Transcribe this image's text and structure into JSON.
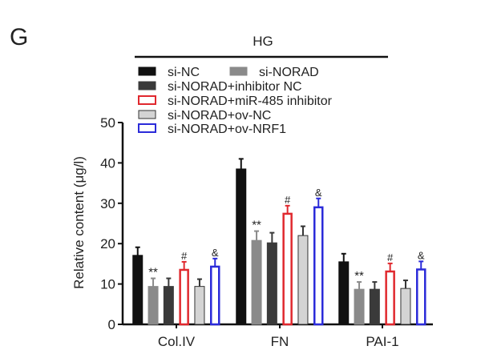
{
  "panel_label": "G",
  "chart_data": {
    "type": "bar",
    "group_label": "HG",
    "ylabel": "Relative content (μg/l)",
    "xlabel": "",
    "ylim": [
      0,
      50
    ],
    "yticks": [
      0,
      10,
      20,
      30,
      40,
      50
    ],
    "categories": [
      "Col.IV",
      "FN",
      "PAI-1"
    ],
    "legend_placement": "top",
    "series": [
      {
        "name": "si-NC",
        "fill": "#111111",
        "stroke": "#111111",
        "values": [
          17.1,
          38.5,
          15.5
        ],
        "errors": [
          2.0,
          2.5,
          2.0
        ],
        "annotations": [
          "",
          "",
          ""
        ]
      },
      {
        "name": "si-NORAD",
        "fill": "#8a8a8a",
        "stroke": "#8a8a8a",
        "values": [
          9.4,
          20.8,
          8.7
        ],
        "errors": [
          2.0,
          2.3,
          1.8
        ],
        "annotations": [
          "**",
          "**",
          "**"
        ]
      },
      {
        "name": "si-NORAD+inhibitor NC",
        "fill": "#3a3a3a",
        "stroke": "#3a3a3a",
        "values": [
          9.4,
          20.2,
          8.7
        ],
        "errors": [
          2.0,
          2.5,
          1.8
        ],
        "annotations": [
          "",
          "",
          ""
        ]
      },
      {
        "name": "si-NORAD+miR-485 inhibitor",
        "fill": "#ffffff",
        "stroke": "#e0282e",
        "values": [
          13.5,
          27.4,
          13.1
        ],
        "errors": [
          2.0,
          2.0,
          2.0
        ],
        "annotations": [
          "#",
          "#",
          "#"
        ]
      },
      {
        "name": "si-NORAD+ov-NC",
        "fill": "#d4d4d4",
        "stroke": "#333333",
        "values": [
          9.4,
          22.0,
          8.9
        ],
        "errors": [
          1.8,
          2.3,
          2.0
        ],
        "annotations": [
          "",
          "",
          ""
        ]
      },
      {
        "name": "si-NORAD+ov-NRF1",
        "fill": "#ffffff",
        "stroke": "#2b2bd9",
        "values": [
          14.3,
          29.0,
          13.6
        ],
        "errors": [
          2.0,
          2.2,
          2.0
        ],
        "annotations": [
          "&",
          "&",
          "&"
        ]
      }
    ]
  }
}
